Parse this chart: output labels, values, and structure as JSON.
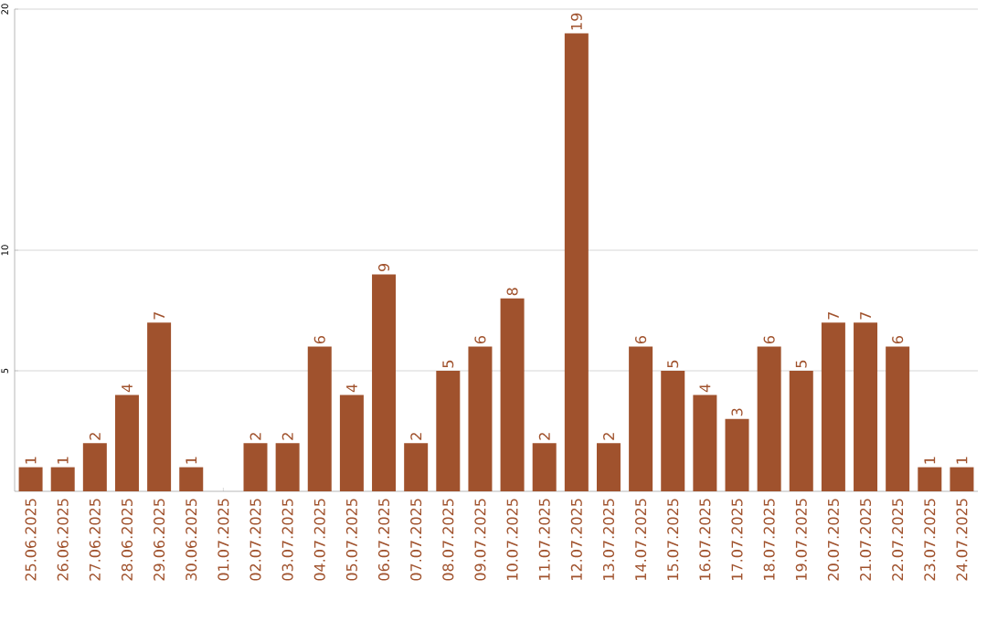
{
  "chart_data": {
    "type": "bar",
    "categories": [
      "25.06.2025",
      "26.06.2025",
      "27.06.2025",
      "28.06.2025",
      "29.06.2025",
      "30.06.2025",
      "01.07.2025",
      "02.07.2025",
      "03.07.2025",
      "04.07.2025",
      "05.07.2025",
      "06.07.2025",
      "07.07.2025",
      "08.07.2025",
      "09.07.2025",
      "10.07.2025",
      "11.07.2025",
      "12.07.2025",
      "13.07.2025",
      "14.07.2025",
      "15.07.2025",
      "16.07.2025",
      "17.07.2025",
      "18.07.2025",
      "19.07.2025",
      "20.07.2025",
      "21.07.2025",
      "22.07.2025",
      "23.07.2025",
      "24.07.2025"
    ],
    "values": [
      1,
      1,
      2,
      4,
      7,
      1,
      0,
      2,
      2,
      6,
      4,
      9,
      2,
      5,
      6,
      8,
      2,
      19,
      2,
      6,
      5,
      4,
      3,
      6,
      5,
      7,
      7,
      6,
      1,
      1
    ],
    "value_labels": [
      "1",
      "1",
      "2",
      "4",
      "7",
      "1",
      null,
      "2",
      "2",
      "6",
      "4",
      "9",
      "2",
      "5",
      "6",
      "8",
      "2",
      "19",
      "2",
      "6",
      "5",
      "4",
      "3",
      "6",
      "5",
      "7",
      "7",
      "6",
      "1",
      "1"
    ],
    "color": "#a0522d",
    "ylim": [
      0,
      20
    ],
    "yticks": [
      5,
      10,
      20
    ],
    "grid": "y"
  }
}
